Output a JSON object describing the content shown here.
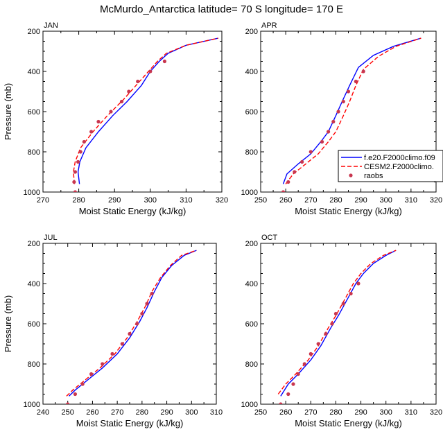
{
  "page_title": "McMurdo_Antarctica  latitude= 70 S longitude= 170 E",
  "legend": {
    "entries": [
      {
        "name": "f.e20.F2000climo.f09",
        "color": "#0000ff",
        "style": "solid"
      },
      {
        "name": "CESM2.F2000climo.",
        "color": "#ff0000",
        "style": "dashed"
      },
      {
        "name": "raobs",
        "color": "#c8364f",
        "style": "marker"
      }
    ]
  },
  "chart_data": [
    {
      "type": "line",
      "panel": "JAN",
      "xlabel": "Moist Static Energy (kJ/kg)",
      "ylabel": "Pressure (mb)",
      "xlim": [
        270,
        320
      ],
      "ylim": [
        1000,
        200
      ],
      "x_ticks": [
        270,
        280,
        290,
        300,
        310,
        320
      ],
      "y_ticks": [
        200,
        400,
        600,
        800,
        1000
      ],
      "grid": false,
      "series": [
        {
          "name": "f.e20.F2000climo.f09",
          "color": "#0000ff",
          "style": "solid",
          "points": [
            [
              280.2,
              960
            ],
            [
              279.8,
              900
            ],
            [
              280.3,
              850
            ],
            [
              282,
              780
            ],
            [
              285.5,
              700
            ],
            [
              289.5,
              620
            ],
            [
              293.5,
              550
            ],
            [
              297.5,
              470
            ],
            [
              300,
              400
            ],
            [
              302.5,
              350
            ],
            [
              305,
              310
            ],
            [
              310,
              270
            ],
            [
              319,
              235
            ]
          ]
        },
        {
          "name": "CESM2.F2000climo.",
          "color": "#ff0000",
          "style": "dashed",
          "points": [
            [
              278.8,
              960
            ],
            [
              278.5,
              900
            ],
            [
              279,
              850
            ],
            [
              280.5,
              780
            ],
            [
              284,
              700
            ],
            [
              288,
              620
            ],
            [
              292.5,
              540
            ],
            [
              296.5,
              460
            ],
            [
              299.5,
              400
            ],
            [
              302,
              350
            ],
            [
              304.5,
              310
            ],
            [
              310,
              270
            ],
            [
              319,
              235
            ]
          ]
        },
        {
          "name": "raobs",
          "color": "#c8364f",
          "style": "marker",
          "points": [
            [
              279,
              1000
            ],
            [
              278.7,
              950
            ],
            [
              279,
              900
            ],
            [
              279.8,
              850
            ],
            [
              280.5,
              800
            ],
            [
              281.5,
              750
            ],
            [
              283.5,
              700
            ],
            [
              285.5,
              650
            ],
            [
              289,
              600
            ],
            [
              292,
              550
            ],
            [
              294,
              500
            ],
            [
              296.5,
              450
            ],
            [
              300,
              400
            ],
            [
              304,
              350
            ]
          ]
        }
      ]
    },
    {
      "type": "line",
      "panel": "APR",
      "xlabel": "Moist Static Energy (kJ/kg)",
      "ylabel": "",
      "xlim": [
        250,
        320
      ],
      "ylim": [
        1000,
        200
      ],
      "x_ticks": [
        250,
        260,
        270,
        280,
        290,
        300,
        310,
        320
      ],
      "y_ticks": [
        200,
        400,
        600,
        800,
        1000
      ],
      "grid": false,
      "series": [
        {
          "name": "f.e20.F2000climo.f09",
          "color": "#0000ff",
          "style": "solid",
          "points": [
            [
              259,
              960
            ],
            [
              260.5,
              910
            ],
            [
              265,
              860
            ],
            [
              270,
              810
            ],
            [
              274,
              750
            ],
            [
              277,
              700
            ],
            [
              280,
              620
            ],
            [
              282.5,
              550
            ],
            [
              285.5,
              470
            ],
            [
              289,
              380
            ],
            [
              295,
              320
            ],
            [
              303,
              275
            ],
            [
              314,
              235
            ]
          ]
        },
        {
          "name": "CESM2.F2000climo.",
          "color": "#ff0000",
          "style": "dashed",
          "points": [
            [
              260,
              960
            ],
            [
              263,
              910
            ],
            [
              268,
              860
            ],
            [
              273,
              810
            ],
            [
              277,
              750
            ],
            [
              280,
              700
            ],
            [
              283,
              620
            ],
            [
              285.5,
              550
            ],
            [
              288,
              470
            ],
            [
              291,
              390
            ],
            [
              297,
              325
            ],
            [
              304,
              275
            ],
            [
              314,
              235
            ]
          ]
        },
        {
          "name": "raobs",
          "color": "#c8364f",
          "style": "marker",
          "points": [
            [
              259,
              1000
            ],
            [
              261,
              950
            ],
            [
              263.5,
              900
            ],
            [
              266.5,
              850
            ],
            [
              270,
              800
            ],
            [
              274.5,
              750
            ],
            [
              277,
              700
            ],
            [
              279,
              650
            ],
            [
              281,
              600
            ],
            [
              283,
              550
            ],
            [
              285,
              500
            ],
            [
              288,
              450
            ],
            [
              291,
              400
            ]
          ]
        }
      ]
    },
    {
      "type": "line",
      "panel": "JUL",
      "xlabel": "Moist Static Energy (kJ/kg)",
      "ylabel": "Pressure (mb)",
      "xlim": [
        240,
        310
      ],
      "ylim": [
        1000,
        200
      ],
      "x_ticks": [
        240,
        250,
        260,
        270,
        280,
        290,
        300,
        310
      ],
      "y_ticks": [
        200,
        400,
        600,
        800,
        1000
      ],
      "grid": false,
      "series": [
        {
          "name": "f.e20.F2000climo.f09",
          "color": "#0000ff",
          "style": "solid",
          "points": [
            [
              250.5,
              960
            ],
            [
              253,
              930
            ],
            [
              258,
              880
            ],
            [
              264,
              820
            ],
            [
              270,
              750
            ],
            [
              275,
              670
            ],
            [
              279,
              590
            ],
            [
              282,
              520
            ],
            [
              285,
              440
            ],
            [
              288,
              370
            ],
            [
              292,
              310
            ],
            [
              297,
              260
            ],
            [
              302,
              235
            ]
          ]
        },
        {
          "name": "CESM2.F2000climo.",
          "color": "#ff0000",
          "style": "dashed",
          "points": [
            [
              249.5,
              960
            ],
            [
              252,
              930
            ],
            [
              257,
              880
            ],
            [
              263,
              820
            ],
            [
              269,
              750
            ],
            [
              274,
              670
            ],
            [
              278,
              590
            ],
            [
              281.5,
              510
            ],
            [
              284,
              440
            ],
            [
              287.5,
              370
            ],
            [
              291.5,
              310
            ],
            [
              296,
              260
            ],
            [
              302,
              235
            ]
          ]
        },
        {
          "name": "raobs",
          "color": "#c8364f",
          "style": "marker",
          "points": [
            [
              250,
              1000
            ],
            [
              253,
              950
            ],
            [
              256,
              900
            ],
            [
              259.5,
              850
            ],
            [
              264,
              800
            ],
            [
              268,
              750
            ],
            [
              272,
              700
            ],
            [
              275,
              650
            ],
            [
              278,
              600
            ],
            [
              280,
              550
            ],
            [
              282,
              500
            ],
            [
              284,
              450
            ]
          ]
        }
      ]
    },
    {
      "type": "line",
      "panel": "OCT",
      "xlabel": "Moist Static Energy (kJ/kg)",
      "ylabel": "",
      "xlim": [
        250,
        320
      ],
      "ylim": [
        1000,
        200
      ],
      "x_ticks": [
        250,
        260,
        270,
        280,
        290,
        300,
        310,
        320
      ],
      "y_ticks": [
        200,
        400,
        600,
        800,
        1000
      ],
      "grid": false,
      "series": [
        {
          "name": "f.e20.F2000climo.f09",
          "color": "#0000ff",
          "style": "solid",
          "points": [
            [
              258,
              960
            ],
            [
              261,
              900
            ],
            [
              265,
              850
            ],
            [
              270,
              780
            ],
            [
              274,
              710
            ],
            [
              278,
              620
            ],
            [
              281,
              560
            ],
            [
              284.5,
              480
            ],
            [
              288,
              400
            ],
            [
              291,
              350
            ],
            [
              295,
              300
            ],
            [
              300,
              260
            ],
            [
              304,
              235
            ]
          ]
        },
        {
          "name": "CESM2.F2000climo.",
          "color": "#ff0000",
          "style": "dashed",
          "points": [
            [
              257,
              950
            ],
            [
              260,
              900
            ],
            [
              264,
              850
            ],
            [
              269,
              780
            ],
            [
              273,
              710
            ],
            [
              277,
              620
            ],
            [
              280,
              560
            ],
            [
              283.5,
              480
            ],
            [
              287,
              400
            ],
            [
              290,
              350
            ],
            [
              294,
              300
            ],
            [
              299,
              260
            ],
            [
              304,
              235
            ]
          ]
        },
        {
          "name": "raobs",
          "color": "#c8364f",
          "style": "marker",
          "points": [
            [
              258,
              1000
            ],
            [
              261,
              950
            ],
            [
              263,
              900
            ],
            [
              265,
              850
            ],
            [
              267.5,
              800
            ],
            [
              270,
              750
            ],
            [
              273,
              700
            ],
            [
              276,
              650
            ],
            [
              278.5,
              600
            ],
            [
              280,
              550
            ],
            [
              283,
              500
            ],
            [
              286,
              450
            ],
            [
              289,
              400
            ]
          ]
        }
      ]
    }
  ]
}
